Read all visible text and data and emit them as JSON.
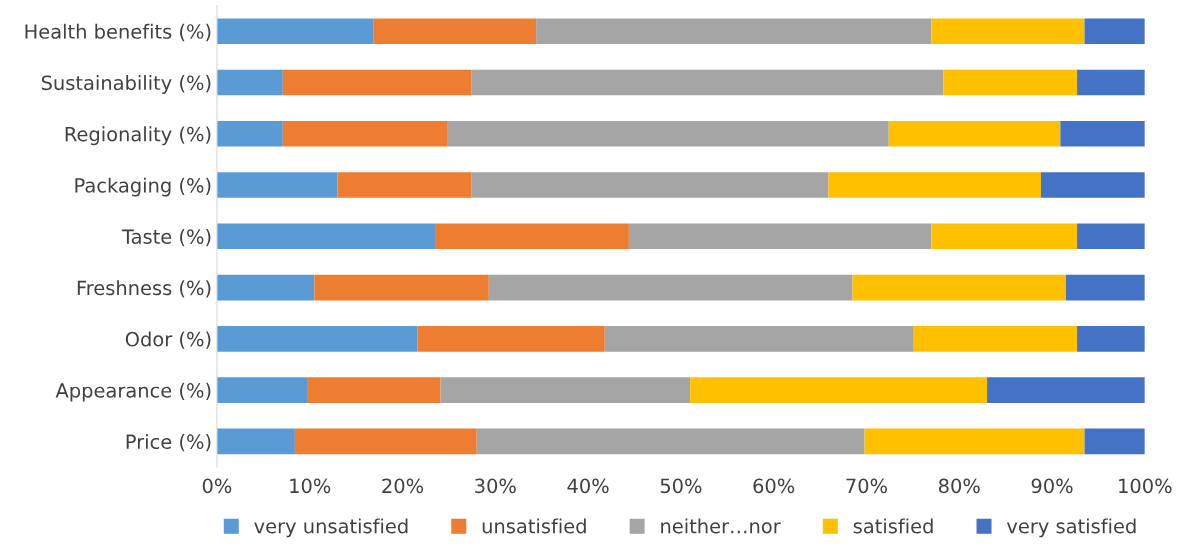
{
  "chart_data": {
    "type": "bar",
    "orientation": "horizontal",
    "stacked": true,
    "categories": [
      "Health benefits (%)",
      "Sustainability (%)",
      "Regionality (%)",
      "Packaging (%)",
      "Taste (%)",
      "Freshness (%)",
      "Odor (%)",
      "Appearance (%)",
      "Price (%)"
    ],
    "series": [
      {
        "name": "very unsatisfied",
        "color": "#5b9bd5",
        "values": [
          16.9,
          7.1,
          7.1,
          13.0,
          23.5,
          10.5,
          21.6,
          9.8,
          8.4
        ]
      },
      {
        "name": "unsatisfied",
        "color": "#ed7d31",
        "values": [
          17.5,
          20.3,
          17.7,
          14.4,
          20.9,
          18.8,
          20.2,
          14.3,
          19.6
        ]
      },
      {
        "name": "neither…nor",
        "color": "#a5a5a5",
        "values": [
          42.6,
          50.9,
          47.6,
          38.5,
          32.6,
          39.2,
          33.3,
          26.9,
          41.8
        ]
      },
      {
        "name": "satisfied",
        "color": "#ffc000",
        "values": [
          16.5,
          14.4,
          18.5,
          22.9,
          15.7,
          23.0,
          17.6,
          32.0,
          23.7
        ]
      },
      {
        "name": "very satisfied",
        "color": "#4472c4",
        "values": [
          6.5,
          7.3,
          9.1,
          11.2,
          7.3,
          8.5,
          7.3,
          17.0,
          6.5
        ]
      }
    ],
    "xlim": [
      0,
      100
    ],
    "xticks": [
      {
        "value": 0,
        "label": "0%"
      },
      {
        "value": 10,
        "label": "10%"
      },
      {
        "value": 20,
        "label": "20%"
      },
      {
        "value": 30,
        "label": "30%"
      },
      {
        "value": 40,
        "label": "40%"
      },
      {
        "value": 50,
        "label": "50%"
      },
      {
        "value": 60,
        "label": "60%"
      },
      {
        "value": 70,
        "label": "70%"
      },
      {
        "value": 80,
        "label": "80%"
      },
      {
        "value": 90,
        "label": "90%"
      },
      {
        "value": 100,
        "label": "100%"
      }
    ],
    "grid": false,
    "legend": "bottom"
  }
}
